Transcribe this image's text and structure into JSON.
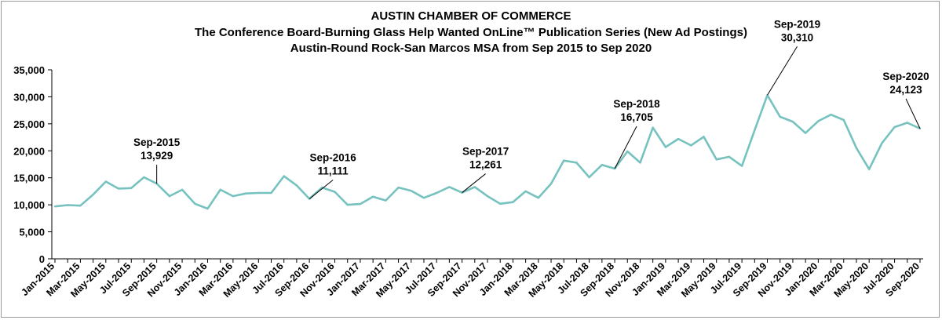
{
  "chart_data": {
    "type": "line",
    "title": "AUSTIN CHAMBER OF COMMERCE",
    "subtitle": "The Conference Board-Burning Glass Help Wanted OnLine™ Publication Series (New Ad Postings)",
    "subtitle2": "Austin-Round Rock-San Marcos MSA from Sep 2015 to Sep 2020",
    "xlabel": "",
    "ylabel": "",
    "ylim": [
      0,
      35000
    ],
    "yticks": [
      "0",
      "5,000",
      "10,000",
      "15,000",
      "20,000",
      "25,000",
      "30,000",
      "35,000"
    ],
    "grid": false,
    "line_color": "#76c2bf",
    "x": [
      "Jan-2015",
      "Feb-2015",
      "Mar-2015",
      "Apr-2015",
      "May-2015",
      "Jun-2015",
      "Jul-2015",
      "Aug-2015",
      "Sep-2015",
      "Oct-2015",
      "Nov-2015",
      "Dec-2015",
      "Jan-2016",
      "Feb-2016",
      "Mar-2016",
      "Apr-2016",
      "May-2016",
      "Jun-2016",
      "Jul-2016",
      "Aug-2016",
      "Sep-2016",
      "Oct-2016",
      "Nov-2016",
      "Dec-2016",
      "Jan-2017",
      "Feb-2017",
      "Mar-2017",
      "Apr-2017",
      "May-2017",
      "Jun-2017",
      "Jul-2017",
      "Aug-2017",
      "Sep-2017",
      "Oct-2017",
      "Nov-2017",
      "Dec-2017",
      "Jan-2018",
      "Feb-2018",
      "Mar-2018",
      "Apr-2018",
      "May-2018",
      "Jun-2018",
      "Jul-2018",
      "Aug-2018",
      "Sep-2018",
      "Oct-2018",
      "Nov-2018",
      "Dec-2018",
      "Jan-2019",
      "Feb-2019",
      "Mar-2019",
      "Apr-2019",
      "May-2019",
      "Jun-2019",
      "Jul-2019",
      "Aug-2019",
      "Sep-2019",
      "Oct-2019",
      "Nov-2019",
      "Dec-2019",
      "Jan-2020",
      "Feb-2020",
      "Mar-2020",
      "Apr-2020",
      "May-2020",
      "Jun-2020",
      "Jul-2020",
      "Aug-2020",
      "Sep-2020"
    ],
    "x_tick_labels": [
      "Jan-2015",
      "Mar-2015",
      "May-2015",
      "Jul-2015",
      "Sep-2015",
      "Nov-2015",
      "Jan-2016",
      "Mar-2016",
      "May-2016",
      "Jul-2016",
      "Sep-2016",
      "Nov-2016",
      "Jan-2017",
      "Mar-2017",
      "May-2017",
      "Jul-2017",
      "Sep-2017",
      "Nov-2017",
      "Jan-2018",
      "Mar-2018",
      "May-2018",
      "Jul-2018",
      "Sep-2018",
      "Nov-2018",
      "Jan-2019",
      "Mar-2019",
      "May-2019",
      "Jul-2019",
      "Sep-2019",
      "Nov-2019",
      "Jan-2020",
      "Mar-2020",
      "May-2020",
      "Jul-2020",
      "Sep-2020"
    ],
    "series": [
      {
        "name": "",
        "values": [
          9700,
          9950,
          9850,
          11900,
          14300,
          13000,
          13100,
          15100,
          13929,
          11600,
          12800,
          10200,
          9300,
          12800,
          11600,
          12100,
          12200,
          12200,
          15300,
          13600,
          11111,
          13200,
          12400,
          10000,
          10150,
          11500,
          10800,
          13200,
          12600,
          11300,
          12200,
          13300,
          12261,
          13300,
          11600,
          10200,
          10500,
          12500,
          11300,
          13900,
          18200,
          17800,
          15100,
          17400,
          16705,
          19900,
          17800,
          24300,
          20700,
          22200,
          21000,
          22600,
          18400,
          18900,
          17200,
          23800,
          30310,
          26300,
          25400,
          23300,
          25500,
          26700,
          25700,
          20500,
          16600,
          21400,
          24400,
          25200,
          24123
        ]
      }
    ],
    "annotations": [
      {
        "x": "Sep-2015",
        "label": "Sep-2015",
        "value": "13,929"
      },
      {
        "x": "Sep-2016",
        "label": "Sep-2016",
        "value": "11,111"
      },
      {
        "x": "Sep-2017",
        "label": "Sep-2017",
        "value": "12,261"
      },
      {
        "x": "Sep-2018",
        "label": "Sep-2018",
        "value": "16,705"
      },
      {
        "x": "Sep-2019",
        "label": "Sep-2019",
        "value": "30,310"
      },
      {
        "x": "Sep-2020",
        "label": "Sep-2020",
        "value": "24,123"
      }
    ]
  }
}
